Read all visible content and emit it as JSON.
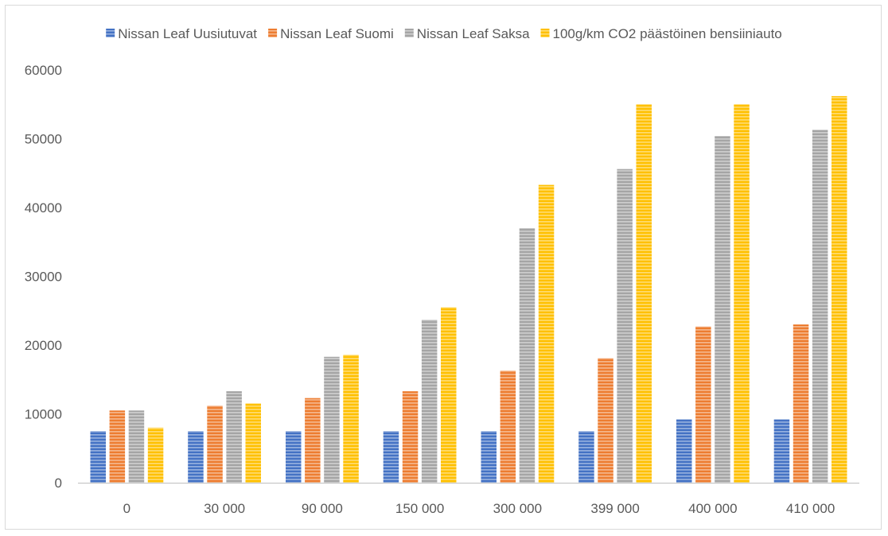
{
  "chart_data": {
    "type": "bar",
    "title": "",
    "xlabel": "",
    "ylabel": "",
    "ylim": [
      0,
      60000
    ],
    "yticks": [
      0,
      10000,
      20000,
      30000,
      40000,
      50000,
      60000
    ],
    "grid": false,
    "legend_position": "top",
    "categories": [
      "0",
      "30 000",
      "90 000",
      "150 000",
      "300 000",
      "399 000",
      "400 000",
      "410 000"
    ],
    "series": [
      {
        "name": "Nissan Leaf Uusiutuvat",
        "color": "#4472c4",
        "values": [
          7500,
          7500,
          7500,
          7500,
          7500,
          7500,
          9200,
          9200
        ]
      },
      {
        "name": "Nissan Leaf Suomi",
        "color": "#ed7d31",
        "values": [
          10500,
          11200,
          12300,
          13300,
          16300,
          18100,
          22700,
          23000
        ]
      },
      {
        "name": "Nissan Leaf Saksa",
        "color": "#a5a5a5",
        "values": [
          10500,
          13300,
          18300,
          23700,
          37000,
          45600,
          50400,
          51300
        ]
      },
      {
        "name": "100g/km CO2 päästöinen bensiiniauto",
        "color": "#ffc000",
        "values": [
          8000,
          11500,
          18600,
          25500,
          43300,
          55000,
          55000,
          56200
        ]
      }
    ]
  }
}
